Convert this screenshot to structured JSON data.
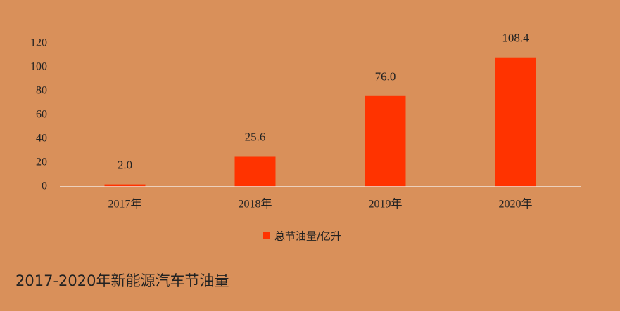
{
  "chart_data": {
    "type": "bar",
    "title": "2017-2020年新能源汽车节油量",
    "categories": [
      "2017年",
      "2018年",
      "2019年",
      "2020年"
    ],
    "series": [
      {
        "name": "总节油量/亿升",
        "color": "#ff3300",
        "values": [
          2.0,
          25.6,
          76.0,
          108.4
        ],
        "value_labels": [
          "2.0",
          "25.6",
          "76.0",
          "108.4"
        ]
      }
    ],
    "ylim": [
      0,
      120
    ],
    "yticks": [
      0,
      20,
      40,
      60,
      80,
      100,
      120
    ],
    "grid": false,
    "legend": "bottom"
  }
}
